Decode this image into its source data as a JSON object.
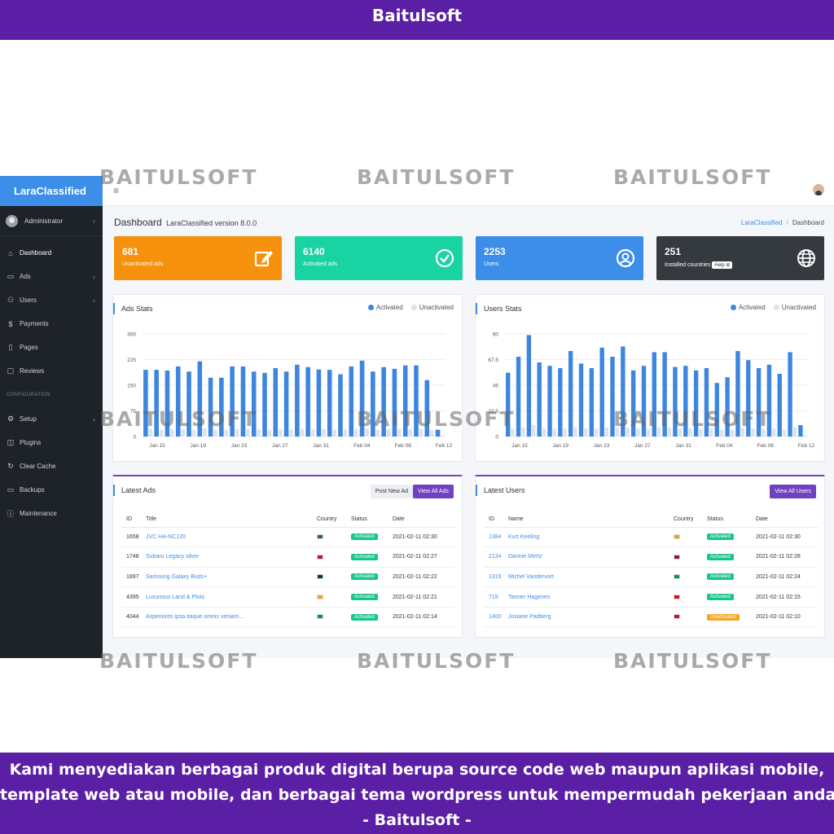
{
  "top_banner": "Baitulsoft",
  "bottom_banner": {
    "line1": "Kami menyediakan berbagai produk digital berupa source code web maupun aplikasi mobile,",
    "line2": "template web atau mobile, dan berbagai tema wordpress untuk mempermudah pekerjaan anda",
    "line3": "- Baitulsoft -"
  },
  "watermark": "BAITULSOFT",
  "sidebar": {
    "brand": "LaraClassified",
    "user": "Administrator",
    "items": [
      {
        "label": "Dashboard",
        "icon": "home-icon"
      },
      {
        "label": "Ads",
        "icon": "ads-icon"
      },
      {
        "label": "Users",
        "icon": "users-icon"
      },
      {
        "label": "Payments",
        "icon": "dollar-icon"
      },
      {
        "label": "Pages",
        "icon": "book-icon"
      },
      {
        "label": "Reviews",
        "icon": "message-icon"
      }
    ],
    "section": "CONFIGURATION",
    "config_items": [
      {
        "label": "Setup",
        "icon": "gear-icon"
      },
      {
        "label": "Plugins",
        "icon": "plugin-icon"
      },
      {
        "label": "Clear Cache",
        "icon": "refresh-icon"
      },
      {
        "label": "Backups",
        "icon": "hdd-icon"
      },
      {
        "label": "Maintenance",
        "icon": "info-icon"
      }
    ]
  },
  "header": {
    "title": "Dashboard",
    "subtitle": "LaraClassified version 8.0.0",
    "breadcrumb_link": "LaraClassified",
    "breadcrumb_current": "Dashboard"
  },
  "stats": [
    {
      "value": "681",
      "label": "Unactivated ads",
      "color": "#f5910d",
      "icon": "edit-icon"
    },
    {
      "value": "6140",
      "label": "Activated ads",
      "color": "#19d3a2",
      "icon": "check-circle-icon"
    },
    {
      "value": "2253",
      "label": "Users",
      "color": "#3d8ee8",
      "icon": "user-circle-icon"
    },
    {
      "value": "251",
      "label": "Installed countries",
      "color": "#343a40",
      "icon": "globe-icon",
      "help": "Help ⊕"
    }
  ],
  "colors": {
    "activated": "#3d86e0",
    "unactivated": "#dfe3e8"
  },
  "chart_data": [
    {
      "type": "bar",
      "title": "Ads Stats",
      "legend": [
        "Activated",
        "Unactivated"
      ],
      "legend_position": "top-right",
      "x_tick_labels": [
        "Jan 15",
        "Jan 19",
        "Jan 23",
        "Jan 27",
        "Jan 31",
        "Feb 04",
        "Feb 08",
        "Feb 12"
      ],
      "y_ticks": [
        "300",
        "225",
        "150",
        "75",
        "0"
      ],
      "ylim": [
        0,
        300
      ],
      "grid": true,
      "series": [
        {
          "name": "Activated",
          "values": [
            195,
            195,
            193,
            205,
            190,
            220,
            172,
            172,
            205,
            205,
            190,
            186,
            200,
            190,
            210,
            203,
            196,
            195,
            182,
            205,
            222,
            190,
            203,
            198,
            208,
            208,
            165,
            20
          ]
        },
        {
          "name": "Unactivated",
          "values": [
            22,
            20,
            22,
            22,
            20,
            24,
            20,
            20,
            22,
            22,
            21,
            20,
            22,
            21,
            23,
            22,
            22,
            21,
            20,
            22,
            24,
            20,
            22,
            22,
            22,
            22,
            18,
            3
          ]
        }
      ]
    },
    {
      "type": "bar",
      "title": "Users Stats",
      "legend": [
        "Activated",
        "Unactivated"
      ],
      "legend_position": "top-right",
      "x_tick_labels": [
        "Jan 15",
        "Jan 19",
        "Jan 23",
        "Jan 27",
        "Jan 31",
        "Feb 04",
        "Feb 08",
        "Feb 12"
      ],
      "y_ticks": [
        "90",
        "67.5",
        "45",
        "22.5",
        "0"
      ],
      "ylim": [
        0,
        90
      ],
      "grid": true,
      "series": [
        {
          "name": "Activated",
          "values": [
            56,
            70,
            89,
            65,
            62,
            60,
            75,
            64,
            60,
            78,
            70,
            79,
            58,
            62,
            74,
            74,
            61,
            62,
            58,
            60,
            47,
            52,
            75,
            67,
            60,
            63,
            55,
            74,
            10
          ]
        },
        {
          "name": "Unactivated",
          "values": [
            7,
            8,
            10,
            7,
            7,
            7,
            8,
            7,
            7,
            8,
            8,
            8,
            7,
            7,
            8,
            8,
            7,
            7,
            7,
            7,
            6,
            6,
            8,
            7,
            7,
            7,
            6,
            8,
            1
          ]
        }
      ]
    }
  ],
  "latest_ads": {
    "title": "Latest Ads",
    "post_button": "Post New Ad",
    "view_button": "View All Ads",
    "columns": [
      "ID",
      "Title",
      "Country",
      "Status",
      "Date"
    ],
    "rows": [
      {
        "id": "1658",
        "title": "JVC HA-NC120",
        "flag": "#2b6b2b",
        "status": "Activated",
        "date": "2021-02-11 02:30"
      },
      {
        "id": "1748",
        "title": "Subaru Legacy silver",
        "flag": "#c8102e",
        "status": "Activated",
        "date": "2021-02-11 02:27"
      },
      {
        "id": "1897",
        "title": "Samsung Galaxy Buds+",
        "flag": "#01411c",
        "status": "Activated",
        "date": "2021-02-11 02:22"
      },
      {
        "id": "4395",
        "title": "Luxurious Land & Plots",
        "flag": "#ff9933",
        "status": "Activated",
        "date": "2021-02-11 02:21"
      },
      {
        "id": "4044",
        "title": "Asperiores ipsa itaque omnis veniam...",
        "flag": "#009c3b",
        "status": "Activated",
        "date": "2021-02-11 02:14"
      }
    ]
  },
  "latest_users": {
    "title": "Latest Users",
    "view_button": "View All Users",
    "columns": [
      "ID",
      "Name",
      "Country",
      "Status",
      "Date"
    ],
    "rows": [
      {
        "id": "1384",
        "name": "Kurt Keeling",
        "flag": "#e8a317",
        "status": "Activated",
        "date": "2021-02-11 02:30"
      },
      {
        "id": "2134",
        "name": "Dannie Mertz",
        "flag": "#8d1b3d",
        "status": "Activated",
        "date": "2021-02-11 02:28"
      },
      {
        "id": "1319",
        "name": "Michel Vandervort",
        "flag": "#009a44",
        "status": "Activated",
        "date": "2021-02-11 02:24"
      },
      {
        "id": "715",
        "name": "Tanner Hagenes",
        "flag": "#e30a17",
        "status": "Activated",
        "date": "2021-02-11 02:15"
      },
      {
        "id": "1400",
        "name": "Josiane Padberg",
        "flag": "#ce1126",
        "status": "Unactivated",
        "date": "2021-02-11 02:10"
      }
    ]
  }
}
